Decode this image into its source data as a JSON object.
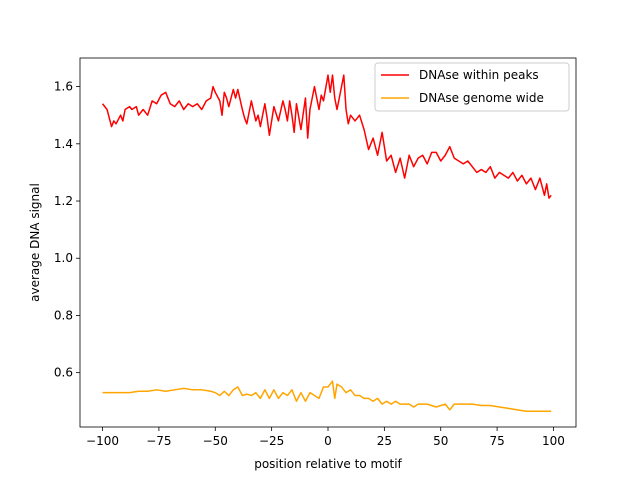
{
  "chart_data": {
    "type": "line",
    "xlabel": "position relative to motif",
    "ylabel": "average DNA signal",
    "xlim": [
      -110,
      110
    ],
    "ylim": [
      0.41,
      1.7
    ],
    "xticks": [
      -100,
      -75,
      -50,
      -25,
      0,
      25,
      50,
      75,
      100
    ],
    "xtick_labels": [
      "−100",
      "−75",
      "−50",
      "−25",
      "0",
      "25",
      "50",
      "75",
      "100"
    ],
    "yticks": [
      0.6,
      0.8,
      1.0,
      1.2,
      1.4,
      1.6
    ],
    "ytick_labels": [
      "0.6",
      "0.8",
      "1.0",
      "1.2",
      "1.4",
      "1.6"
    ],
    "grid": false,
    "legend_position": "top-right",
    "series": [
      {
        "name": "DNAse within peaks",
        "color": "#ff0000",
        "x": [
          -100,
          -98,
          -96,
          -95,
          -94,
          -92,
          -91,
          -90,
          -88,
          -87,
          -85,
          -84,
          -82,
          -80,
          -78,
          -76,
          -74,
          -72,
          -70,
          -68,
          -66,
          -64,
          -62,
          -60,
          -58,
          -56,
          -54,
          -52,
          -51,
          -50,
          -48,
          -47,
          -46,
          -45,
          -44,
          -42,
          -41,
          -40,
          -38,
          -37,
          -36,
          -34,
          -32,
          -31,
          -30,
          -28,
          -27,
          -26,
          -24,
          -22,
          -20,
          -19,
          -18,
          -17,
          -16,
          -15,
          -14,
          -12,
          -10,
          -9,
          -8,
          -6,
          -4,
          -3,
          -2,
          0,
          1,
          2,
          3,
          4,
          6,
          7,
          8,
          9,
          10,
          12,
          14,
          16,
          18,
          20,
          22,
          24,
          26,
          28,
          30,
          32,
          34,
          36,
          38,
          40,
          42,
          44,
          46,
          48,
          50,
          52,
          54,
          56,
          58,
          60,
          62,
          64,
          66,
          68,
          70,
          72,
          74,
          76,
          78,
          80,
          82,
          84,
          86,
          88,
          90,
          92,
          94,
          96,
          97,
          98,
          99
        ],
        "values": [
          1.54,
          1.52,
          1.46,
          1.48,
          1.47,
          1.5,
          1.48,
          1.52,
          1.53,
          1.52,
          1.53,
          1.5,
          1.52,
          1.5,
          1.55,
          1.54,
          1.57,
          1.58,
          1.54,
          1.53,
          1.55,
          1.52,
          1.54,
          1.53,
          1.54,
          1.52,
          1.55,
          1.56,
          1.6,
          1.58,
          1.55,
          1.5,
          1.58,
          1.56,
          1.53,
          1.59,
          1.56,
          1.59,
          1.52,
          1.49,
          1.47,
          1.55,
          1.48,
          1.5,
          1.46,
          1.54,
          1.49,
          1.43,
          1.53,
          1.48,
          1.55,
          1.52,
          1.48,
          1.55,
          1.5,
          1.44,
          1.54,
          1.45,
          1.56,
          1.42,
          1.52,
          1.6,
          1.52,
          1.57,
          1.55,
          1.64,
          1.58,
          1.64,
          1.56,
          1.52,
          1.6,
          1.64,
          1.52,
          1.47,
          1.5,
          1.48,
          1.5,
          1.45,
          1.38,
          1.42,
          1.36,
          1.44,
          1.34,
          1.36,
          1.3,
          1.35,
          1.28,
          1.36,
          1.32,
          1.35,
          1.36,
          1.33,
          1.37,
          1.37,
          1.34,
          1.36,
          1.39,
          1.35,
          1.34,
          1.33,
          1.34,
          1.32,
          1.3,
          1.31,
          1.3,
          1.32,
          1.28,
          1.3,
          1.29,
          1.28,
          1.3,
          1.27,
          1.29,
          1.26,
          1.28,
          1.24,
          1.28,
          1.22,
          1.26,
          1.21,
          1.22
        ]
      },
      {
        "name": "DNAse genome wide",
        "color": "#ffa500",
        "x": [
          -100,
          -96,
          -92,
          -88,
          -84,
          -80,
          -76,
          -72,
          -68,
          -64,
          -60,
          -56,
          -52,
          -50,
          -48,
          -46,
          -44,
          -42,
          -40,
          -38,
          -36,
          -34,
          -32,
          -30,
          -28,
          -26,
          -24,
          -22,
          -20,
          -18,
          -16,
          -14,
          -12,
          -10,
          -8,
          -6,
          -4,
          -2,
          0,
          2,
          3,
          4,
          6,
          8,
          10,
          12,
          14,
          16,
          18,
          20,
          22,
          24,
          26,
          28,
          30,
          32,
          34,
          36,
          38,
          40,
          44,
          48,
          52,
          54,
          56,
          60,
          64,
          68,
          72,
          76,
          80,
          84,
          88,
          92,
          96,
          99
        ],
        "values": [
          0.53,
          0.53,
          0.53,
          0.53,
          0.535,
          0.535,
          0.54,
          0.535,
          0.54,
          0.545,
          0.54,
          0.54,
          0.535,
          0.53,
          0.52,
          0.535,
          0.52,
          0.54,
          0.55,
          0.52,
          0.525,
          0.52,
          0.53,
          0.51,
          0.54,
          0.51,
          0.54,
          0.51,
          0.53,
          0.52,
          0.54,
          0.5,
          0.53,
          0.5,
          0.53,
          0.52,
          0.51,
          0.55,
          0.55,
          0.57,
          0.51,
          0.56,
          0.55,
          0.53,
          0.54,
          0.52,
          0.52,
          0.51,
          0.51,
          0.5,
          0.51,
          0.49,
          0.5,
          0.49,
          0.5,
          0.49,
          0.49,
          0.49,
          0.48,
          0.49,
          0.49,
          0.48,
          0.49,
          0.47,
          0.49,
          0.49,
          0.49,
          0.485,
          0.485,
          0.48,
          0.475,
          0.47,
          0.465,
          0.465,
          0.465,
          0.465
        ]
      }
    ]
  }
}
